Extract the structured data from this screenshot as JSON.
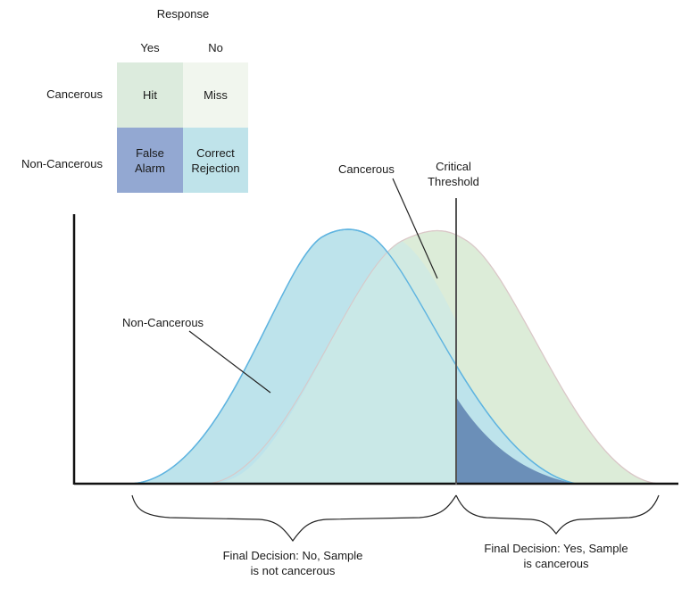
{
  "matrix": {
    "title": "Response",
    "col_yes": "Yes",
    "col_no": "No",
    "row_cancerous": "Cancerous",
    "row_noncancerous": "Non-Cancerous",
    "cell_hit": "Hit",
    "cell_miss": "Miss",
    "cell_false_alarm": "False\nAlarm",
    "cell_correct_rejection": "Correct\nRejection",
    "colors": {
      "hit": "#dcebdd",
      "miss": "#f1f6ee",
      "false_alarm": "#93a8d2",
      "correct_rejection": "#bfe3ea"
    }
  },
  "diagram": {
    "label_cancerous": "Cancerous",
    "label_noncancerous": "Non-Cancerous",
    "label_threshold": "Critical\nThreshold",
    "decision_no": "Final Decision: No, Sample\nis not cancerous",
    "decision_yes": "Final Decision: Yes, Sample\nis cancerous",
    "colors": {
      "noncancerous_fill": "#bde3eb",
      "noncancerous_stroke": "#5fb4e0",
      "cancerous_fill": "#dcecd8",
      "cancerous_stroke": "#e6c9c9",
      "overlap_fill": "#cde9e6",
      "false_alarm_region": "#6b8fb8",
      "threshold_line": "#555555"
    }
  }
}
